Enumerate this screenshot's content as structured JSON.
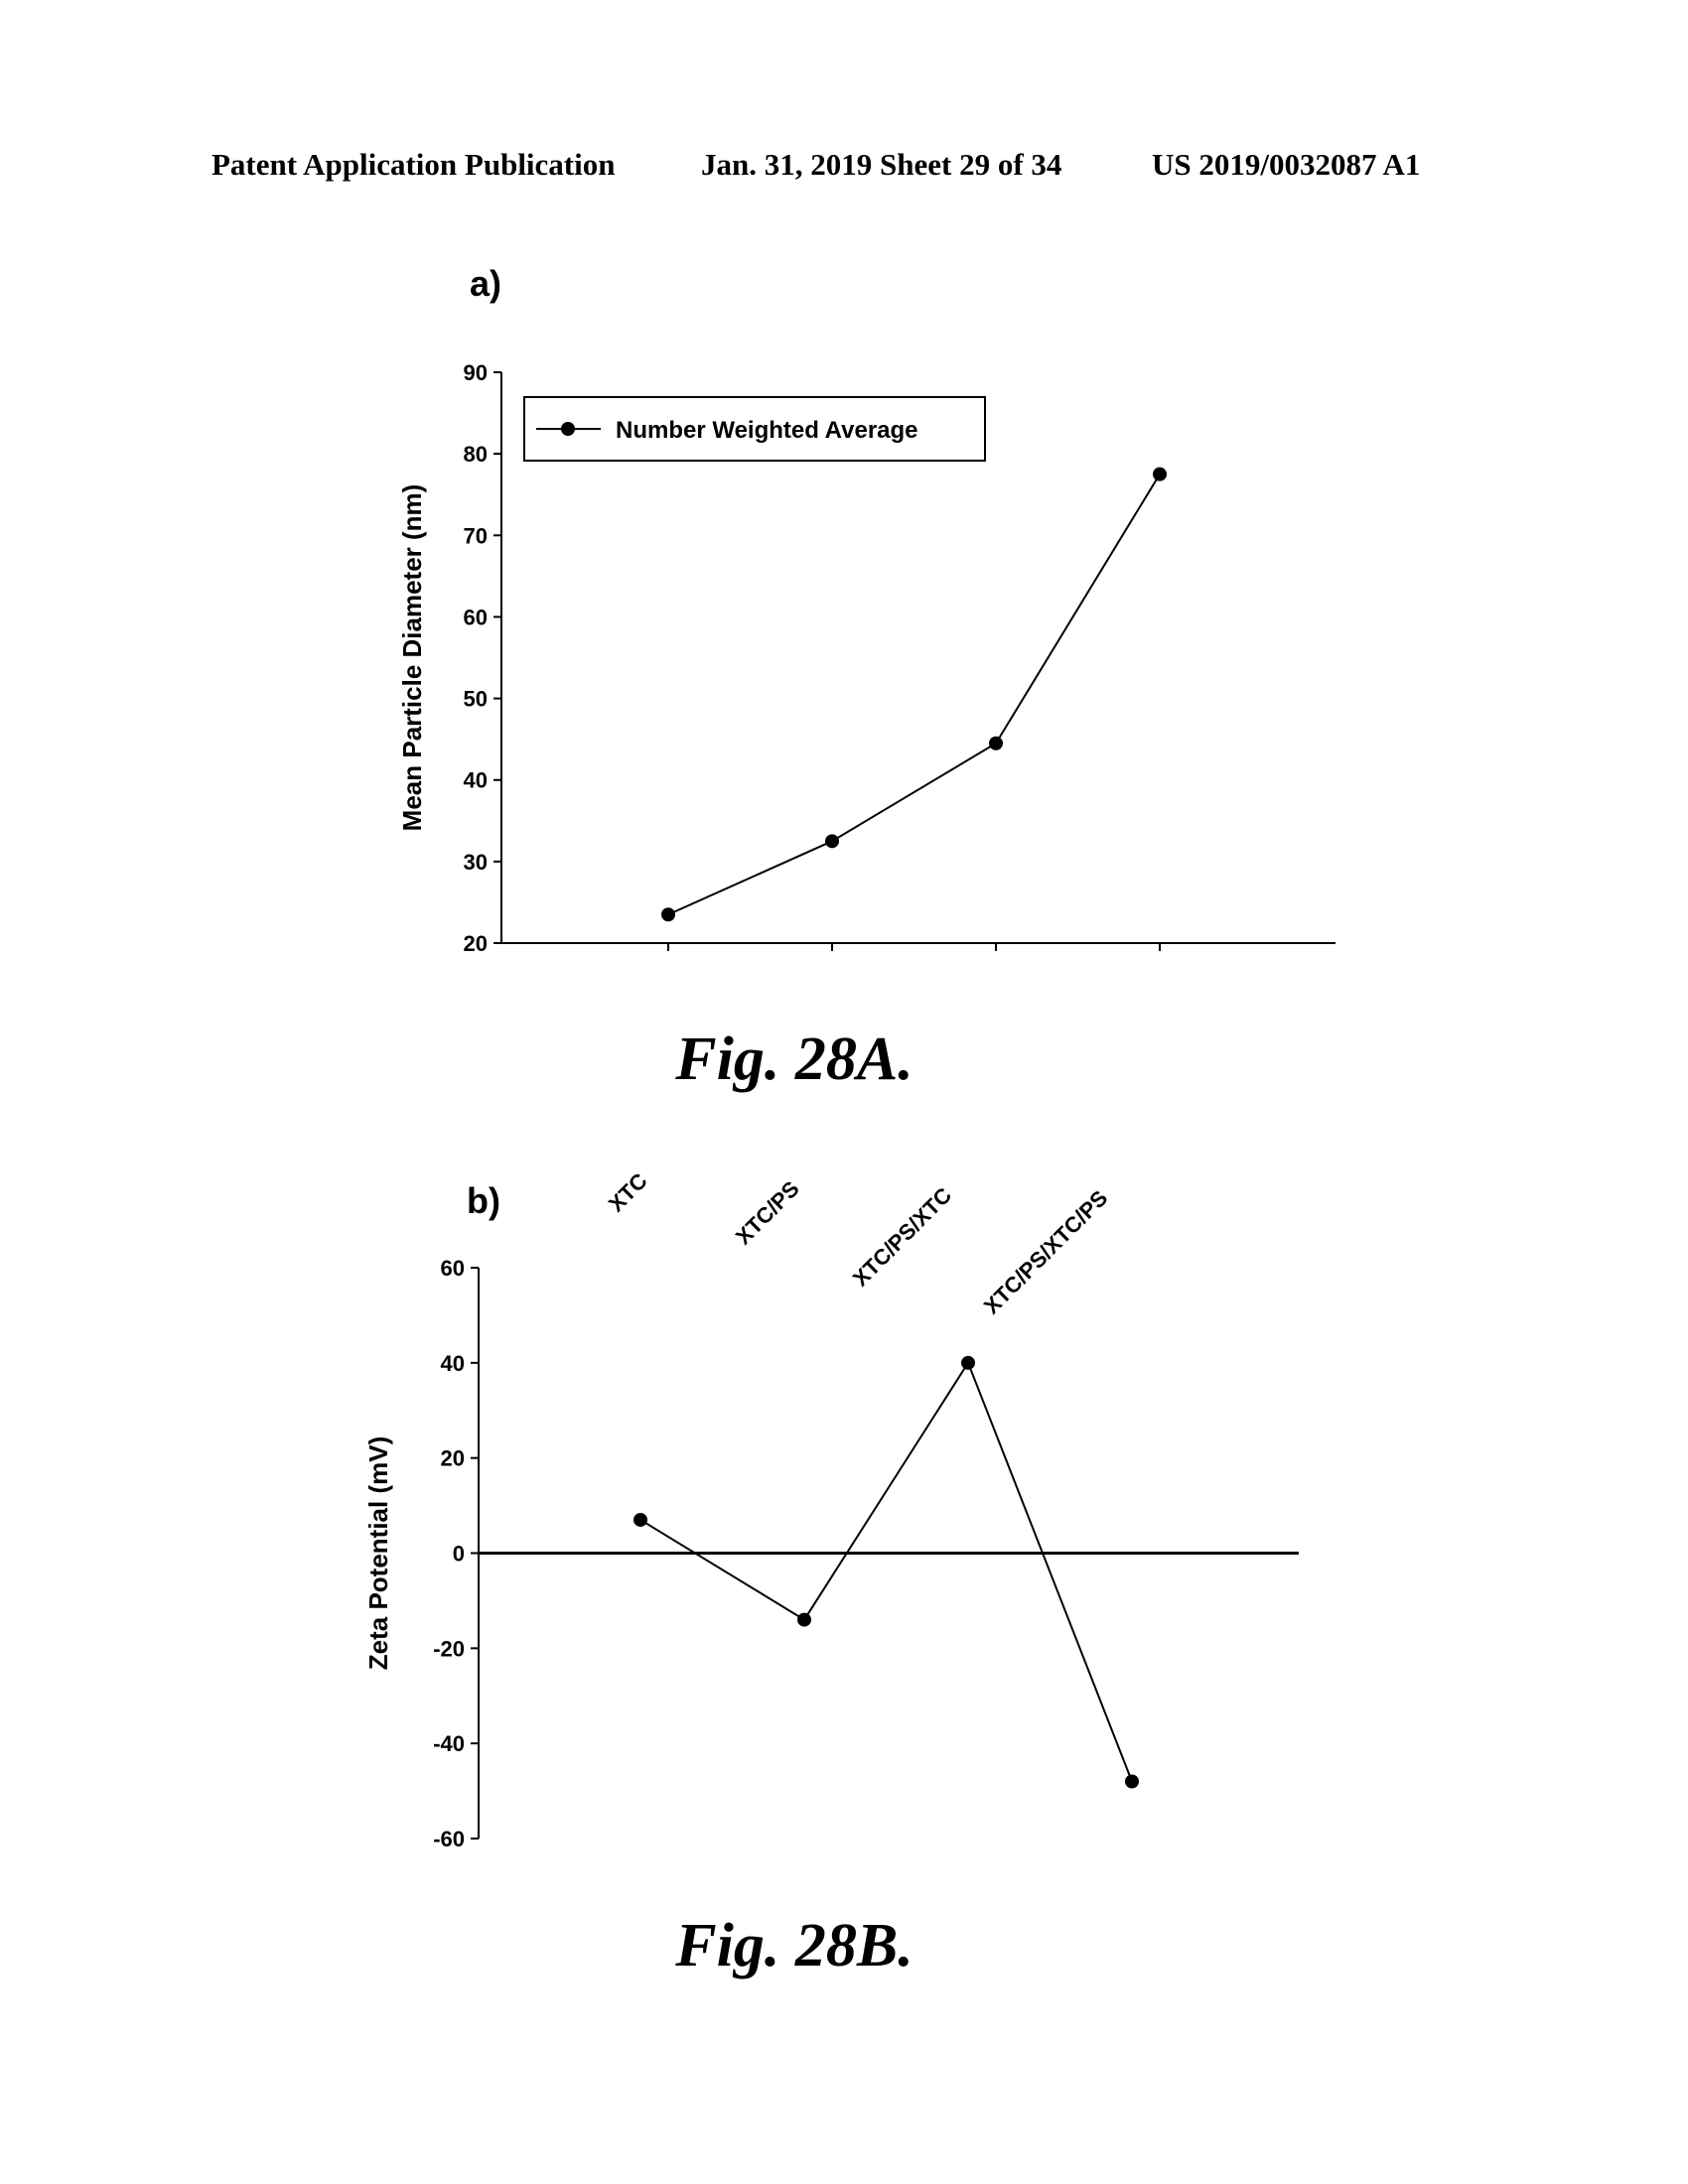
{
  "header": {
    "left": "Patent Application Publication",
    "middle": "Jan. 31, 2019  Sheet 29 of 34",
    "right": "US 2019/0032087 A1"
  },
  "captions": {
    "a": "Fig. 28A.",
    "b": "Fig. 28B."
  },
  "chart_data": [
    {
      "type": "line",
      "panel_label": "a)",
      "ylabel": "Mean Particle Diameter (nm)",
      "ylim": [
        20,
        90
      ],
      "yticks": [
        20,
        30,
        40,
        50,
        60,
        70,
        80,
        90
      ],
      "series": [
        {
          "name": "Number Weighted Average",
          "values": [
            23.5,
            32.5,
            44.5,
            77.5
          ]
        }
      ],
      "legend": "top-left",
      "grid": false,
      "color": "#000000"
    },
    {
      "type": "line",
      "panel_label": "b)",
      "ylabel": "Zeta Potential (mV)",
      "categories": [
        "XTC",
        "XTC/PS",
        "XTC/PS/XTC",
        "XTC/PS/XTC/PS"
      ],
      "ylim": [
        -60,
        60
      ],
      "yticks": [
        -60,
        -40,
        -20,
        0,
        20,
        40,
        60
      ],
      "series": [
        {
          "values": [
            7,
            -14,
            40,
            -48
          ]
        }
      ],
      "zero_line": true,
      "grid": false,
      "color": "#000000"
    }
  ]
}
